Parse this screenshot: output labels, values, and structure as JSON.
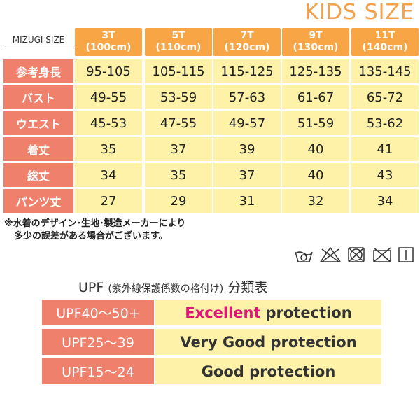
{
  "header": {
    "title": "KIDS SIZE",
    "label": "MIZUGI SIZE"
  },
  "table": {
    "columns": [
      [
        "3T",
        "(100cm)"
      ],
      [
        "5T",
        "(110cm)"
      ],
      [
        "7T",
        "(120cm)"
      ],
      [
        "9T",
        "(130cm)"
      ],
      [
        "11T",
        "(140cm)"
      ]
    ],
    "rows": [
      {
        "label": "参考身長",
        "values": [
          "95-105",
          "105-115",
          "115-125",
          "125-135",
          "135-145"
        ]
      },
      {
        "label": "バスト",
        "values": [
          "49-55",
          "53-59",
          "57-63",
          "61-67",
          "65-72"
        ]
      },
      {
        "label": "ウエスト",
        "values": [
          "45-53",
          "47-55",
          "49-57",
          "51-59",
          "53-62"
        ]
      },
      {
        "label": "着丈",
        "values": [
          "35",
          "37",
          "39",
          "40",
          "41"
        ]
      },
      {
        "label": "総丈",
        "values": [
          "34",
          "35",
          "37",
          "40",
          "43"
        ]
      },
      {
        "label": "パンツ丈",
        "values": [
          "27",
          "29",
          "31",
          "32",
          "34"
        ]
      }
    ]
  },
  "note": [
    "※水着のデザイン･生地･製造メーカーにより",
    "多少の誤差がある場合がございます。"
  ],
  "upf": {
    "title": "UPF",
    "subtitle": "(紫外線保護係数の格付け)",
    "title_end": "分類表",
    "rows": [
      {
        "grade": "UPF40〜50+",
        "highlight": "Excellent",
        "rating": "protection"
      },
      {
        "grade": "UPF25〜39",
        "rating": "Very Good protection"
      },
      {
        "grade": "UPF15〜24",
        "rating": "Good protection"
      }
    ]
  }
}
